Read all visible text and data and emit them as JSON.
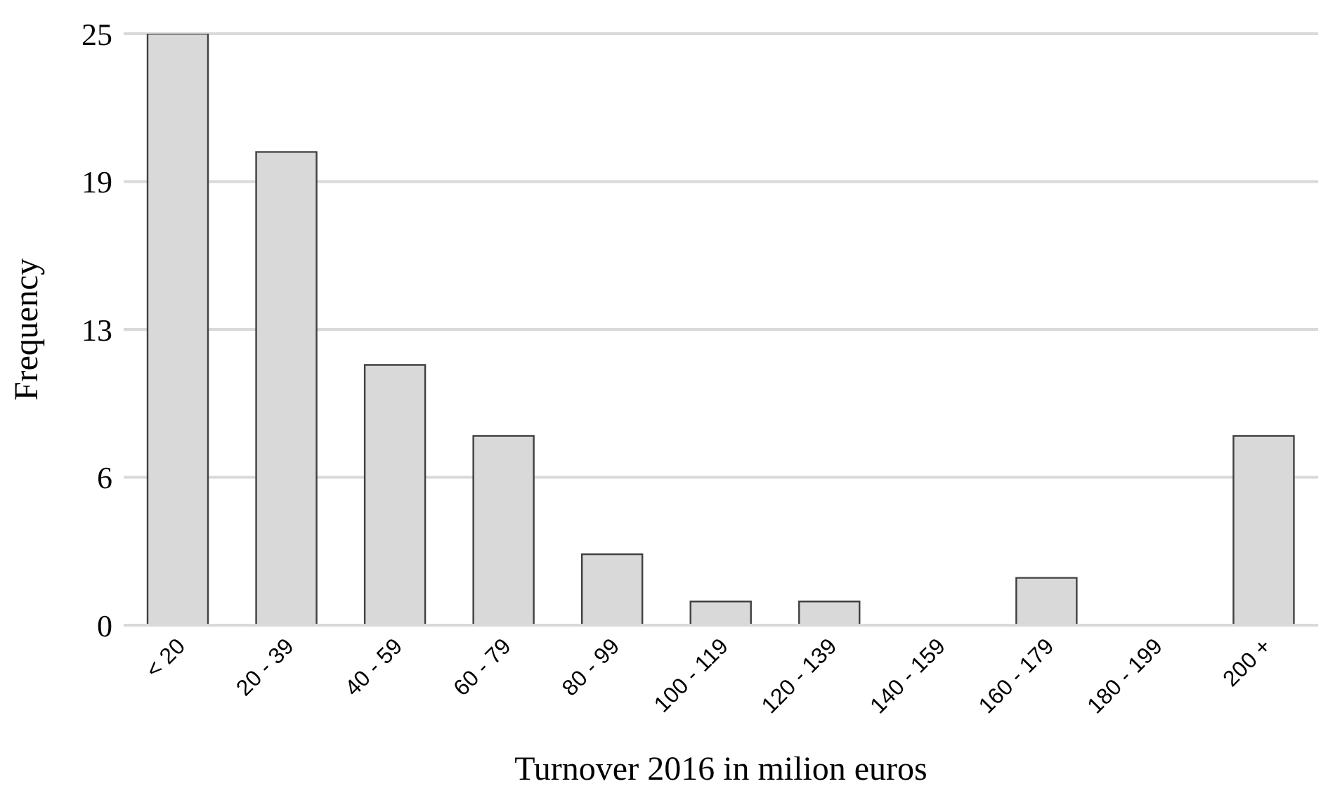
{
  "chart_data": {
    "type": "bar",
    "xlabel": "Turnover 2016  in milion euros",
    "ylabel": "Frequency",
    "categories": [
      "< 20",
      "20 - 39",
      "40 - 59",
      "60 - 79",
      "80 - 99",
      "100 - 119",
      "120 - 139",
      "140 - 159",
      "160 - 179",
      "180 - 199",
      "200 +"
    ],
    "values": [
      25,
      20,
      11,
      8,
      3,
      1,
      1,
      0,
      2,
      0,
      8
    ],
    "color": "#d9d9d9",
    "ylim": [
      0,
      25
    ],
    "yticks": [
      0,
      {
        "value": 6.25,
        "label": "6"
      },
      {
        "value": 12.5,
        "label": "13"
      },
      {
        "value": 18.75,
        "label": "19"
      },
      25
    ],
    "grid": "y"
  }
}
